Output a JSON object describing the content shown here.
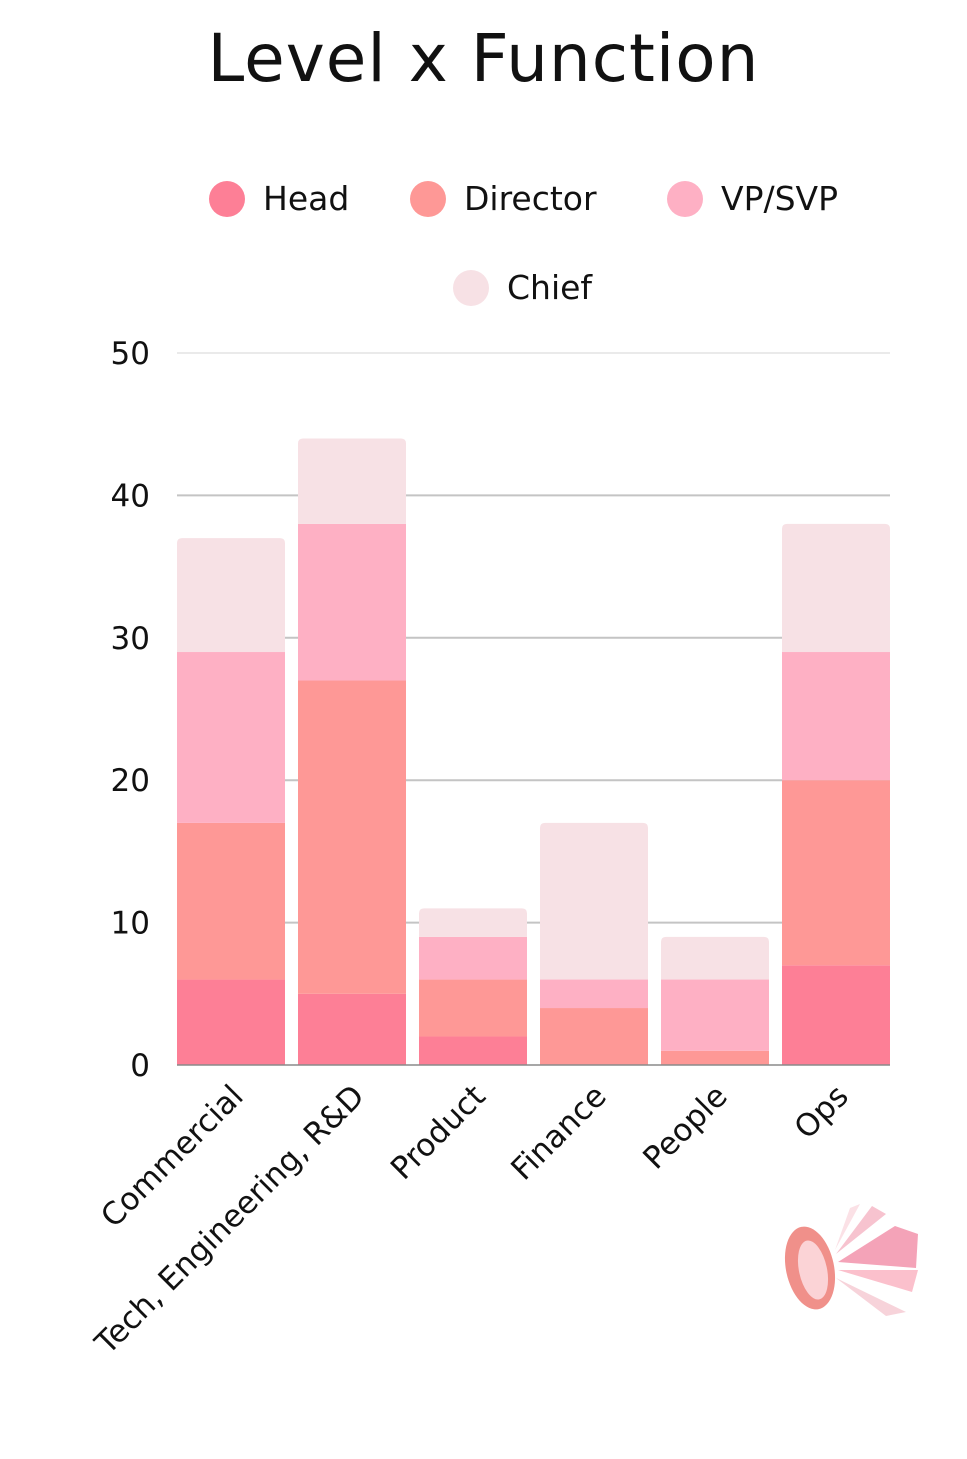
{
  "chart_data": {
    "type": "bar",
    "stacked": true,
    "title": "Level x Function",
    "categories": [
      "Commercial",
      "Tech, Engineering, R&D",
      "Product",
      "Finance",
      "People",
      "Ops"
    ],
    "series": [
      {
        "name": "Head",
        "color": "#fd7f96",
        "values": [
          6,
          5,
          2,
          0,
          0,
          7
        ]
      },
      {
        "name": "Director",
        "color": "#fe9896",
        "values": [
          11,
          22,
          4,
          4,
          1,
          13
        ]
      },
      {
        "name": "VP/SVP",
        "color": "#feb0c4",
        "values": [
          12,
          11,
          3,
          2,
          5,
          9
        ]
      },
      {
        "name": "Chief",
        "color": "#f7e1e5",
        "values": [
          8,
          6,
          2,
          11,
          3,
          9
        ]
      }
    ],
    "ylim": [
      0,
      50
    ],
    "yticks": [
      "0",
      "10",
      "20",
      "30",
      "40",
      "50"
    ],
    "grid": true,
    "legend_position": "top"
  }
}
